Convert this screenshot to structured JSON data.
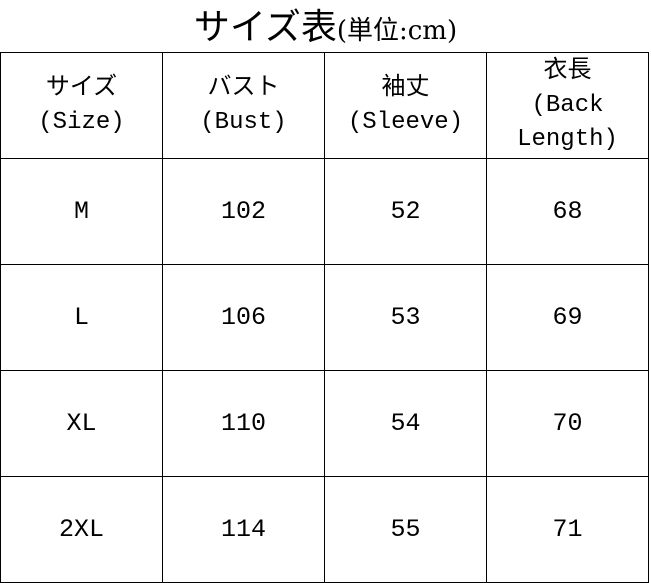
{
  "title": {
    "main": "サイズ表",
    "unit": "(単位:cm)"
  },
  "table": {
    "headers": [
      {
        "jp": "サイズ",
        "en": "(Size)"
      },
      {
        "jp": "バスト",
        "en": "(Bust)"
      },
      {
        "jp": "袖丈",
        "en": "(Sleeve)"
      },
      {
        "jp": "衣長",
        "en": "(Back Length)"
      }
    ],
    "rows": [
      [
        "M",
        "102",
        "52",
        "68"
      ],
      [
        "L",
        "106",
        "53",
        "69"
      ],
      [
        "XL",
        "110",
        "54",
        "70"
      ],
      [
        "2XL",
        "114",
        "55",
        "71"
      ]
    ]
  }
}
